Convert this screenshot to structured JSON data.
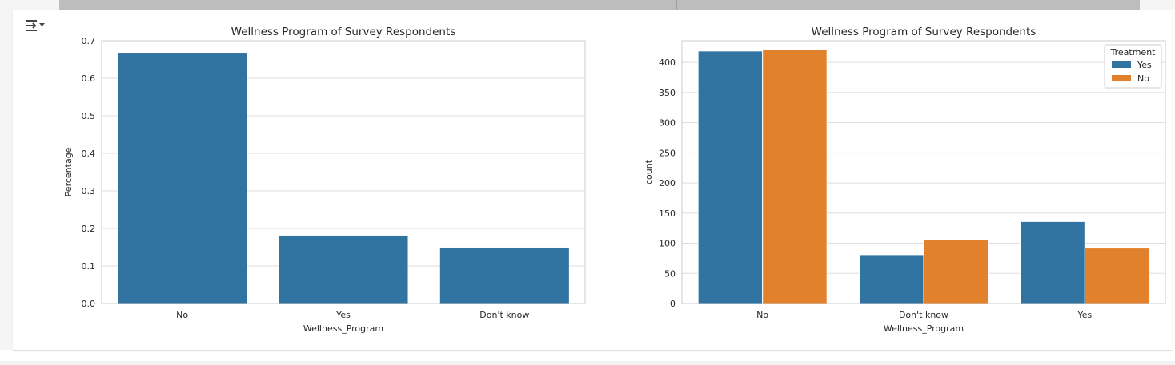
{
  "ui": {
    "output_toggle_icon": "collapse-output-icon"
  },
  "chart_data": [
    {
      "type": "bar",
      "title": "Wellness Program of Survey Respondents",
      "xlabel": "Wellness_Program",
      "ylabel": "Percentage",
      "categories": [
        "No",
        "Yes",
        "Don't know"
      ],
      "values": [
        0.668,
        0.181,
        0.149
      ],
      "ylim": [
        0,
        0.7
      ],
      "yticks": [
        0.0,
        0.1,
        0.2,
        0.3,
        0.4,
        0.5,
        0.6,
        0.7
      ],
      "ytick_labels": [
        "0.0",
        "0.1",
        "0.2",
        "0.3",
        "0.4",
        "0.5",
        "0.6",
        "0.7"
      ],
      "grid": true,
      "color": "#3274a1"
    },
    {
      "type": "bar",
      "title": "Wellness Program of Survey Respondents",
      "xlabel": "Wellness_Program",
      "ylabel": "count",
      "categories": [
        "No",
        "Don't know",
        "Yes"
      ],
      "series": [
        {
          "name": "Yes",
          "values": [
            419,
            81,
            136
          ],
          "color": "#3274a1"
        },
        {
          "name": "No",
          "values": [
            421,
            106,
            92
          ],
          "color": "#e1812c"
        }
      ],
      "ylim": [
        0,
        436
      ],
      "yticks": [
        0,
        50,
        100,
        150,
        200,
        250,
        300,
        350,
        400
      ],
      "ytick_labels": [
        "0",
        "50",
        "100",
        "150",
        "200",
        "250",
        "300",
        "350",
        "400"
      ],
      "legend": {
        "title": "Treatment",
        "position": "top-right"
      },
      "grid": true
    }
  ]
}
